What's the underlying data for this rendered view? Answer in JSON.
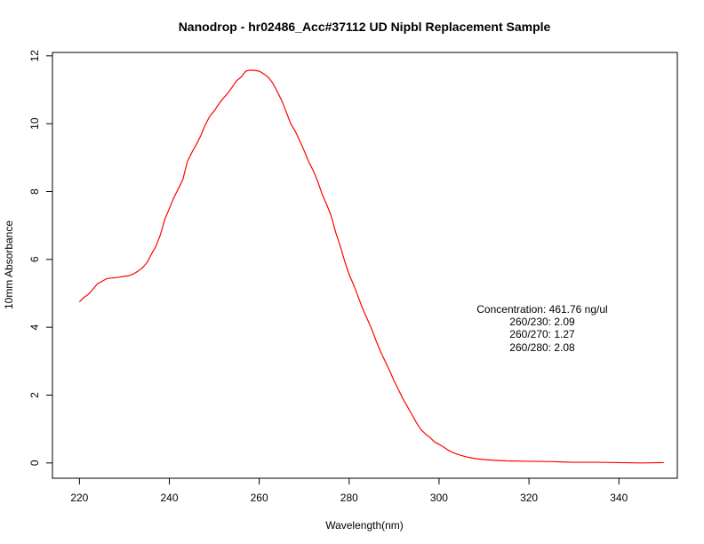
{
  "chart_data": {
    "type": "line",
    "title": "Nanodrop - hr02486_Acc#37112 UD Nipbl Replacement Sample",
    "xlabel": "Wavelength(nm)",
    "ylabel": "10mm Absorbance",
    "xlim": [
      214,
      353
    ],
    "ylim": [
      -0.45,
      12.1
    ],
    "x_ticks": [
      220,
      240,
      260,
      280,
      300,
      320,
      340
    ],
    "y_ticks": [
      0,
      2,
      4,
      6,
      8,
      10,
      12
    ],
    "grid": false,
    "series": [
      {
        "color": "#ff0000",
        "points": [
          [
            220,
            4.75
          ],
          [
            221,
            4.88
          ],
          [
            222,
            4.97
          ],
          [
            223,
            5.12
          ],
          [
            224,
            5.28
          ],
          [
            225,
            5.35
          ],
          [
            226,
            5.43
          ],
          [
            227,
            5.45
          ],
          [
            228,
            5.46
          ],
          [
            229,
            5.48
          ],
          [
            230,
            5.5
          ],
          [
            231,
            5.52
          ],
          [
            232,
            5.57
          ],
          [
            233,
            5.65
          ],
          [
            234,
            5.75
          ],
          [
            235,
            5.9
          ],
          [
            236,
            6.15
          ],
          [
            237,
            6.38
          ],
          [
            238,
            6.72
          ],
          [
            239,
            7.18
          ],
          [
            240,
            7.5
          ],
          [
            241,
            7.82
          ],
          [
            242,
            8.08
          ],
          [
            243,
            8.35
          ],
          [
            244,
            8.88
          ],
          [
            245,
            9.15
          ],
          [
            246,
            9.38
          ],
          [
            247,
            9.65
          ],
          [
            248,
            9.97
          ],
          [
            249,
            10.22
          ],
          [
            250,
            10.38
          ],
          [
            251,
            10.58
          ],
          [
            252,
            10.75
          ],
          [
            253,
            10.9
          ],
          [
            254,
            11.08
          ],
          [
            255,
            11.27
          ],
          [
            256,
            11.38
          ],
          [
            257,
            11.55
          ],
          [
            258,
            11.58
          ],
          [
            259,
            11.57
          ],
          [
            260,
            11.55
          ],
          [
            261,
            11.47
          ],
          [
            262,
            11.37
          ],
          [
            263,
            11.2
          ],
          [
            264,
            10.95
          ],
          [
            265,
            10.68
          ],
          [
            266,
            10.35
          ],
          [
            267,
            10.0
          ],
          [
            268,
            9.78
          ],
          [
            269,
            9.5
          ],
          [
            270,
            9.2
          ],
          [
            271,
            8.88
          ],
          [
            272,
            8.62
          ],
          [
            273,
            8.3
          ],
          [
            274,
            7.92
          ],
          [
            275,
            7.62
          ],
          [
            276,
            7.28
          ],
          [
            277,
            6.8
          ],
          [
            278,
            6.4
          ],
          [
            279,
            5.95
          ],
          [
            280,
            5.55
          ],
          [
            281,
            5.25
          ],
          [
            282,
            4.9
          ],
          [
            283,
            4.55
          ],
          [
            284,
            4.25
          ],
          [
            285,
            3.95
          ],
          [
            286,
            3.6
          ],
          [
            287,
            3.28
          ],
          [
            288,
            3.0
          ],
          [
            289,
            2.72
          ],
          [
            290,
            2.42
          ],
          [
            291,
            2.15
          ],
          [
            292,
            1.88
          ],
          [
            293,
            1.65
          ],
          [
            294,
            1.42
          ],
          [
            295,
            1.18
          ],
          [
            296,
            0.98
          ],
          [
            297,
            0.85
          ],
          [
            298,
            0.75
          ],
          [
            299,
            0.62
          ],
          [
            300,
            0.55
          ],
          [
            301,
            0.47
          ],
          [
            302,
            0.38
          ],
          [
            303,
            0.31
          ],
          [
            304,
            0.26
          ],
          [
            305,
            0.22
          ],
          [
            306,
            0.18
          ],
          [
            308,
            0.13
          ],
          [
            310,
            0.1
          ],
          [
            312,
            0.08
          ],
          [
            315,
            0.06
          ],
          [
            320,
            0.05
          ],
          [
            325,
            0.04
          ],
          [
            330,
            0.02
          ],
          [
            335,
            0.02
          ],
          [
            340,
            0.01
          ],
          [
            345,
            0.0
          ],
          [
            350,
            0.01
          ]
        ]
      }
    ],
    "annotations": [
      "Concentration: 461.76 ng/ul",
      "260/230: 2.09",
      "260/270: 1.27",
      "260/280: 2.08"
    ]
  }
}
